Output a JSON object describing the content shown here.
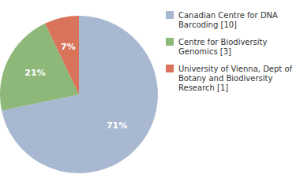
{
  "chart_data": {
    "type": "pie",
    "categories": [
      "Canadian Centre for DNA\nBarcoding [10]",
      "Centre for Biodiversity\nGenomics [3]",
      "University of Vienna, Dept of\nBotany and Biodiversity\nResearch [1]"
    ],
    "values": [
      71,
      21,
      7
    ],
    "value_labels": [
      "71%",
      "21%",
      "7%"
    ],
    "colors": [
      "#a8b8d0",
      "#8db87a",
      "#d9735a"
    ],
    "data_labels": true,
    "legend": "right"
  }
}
